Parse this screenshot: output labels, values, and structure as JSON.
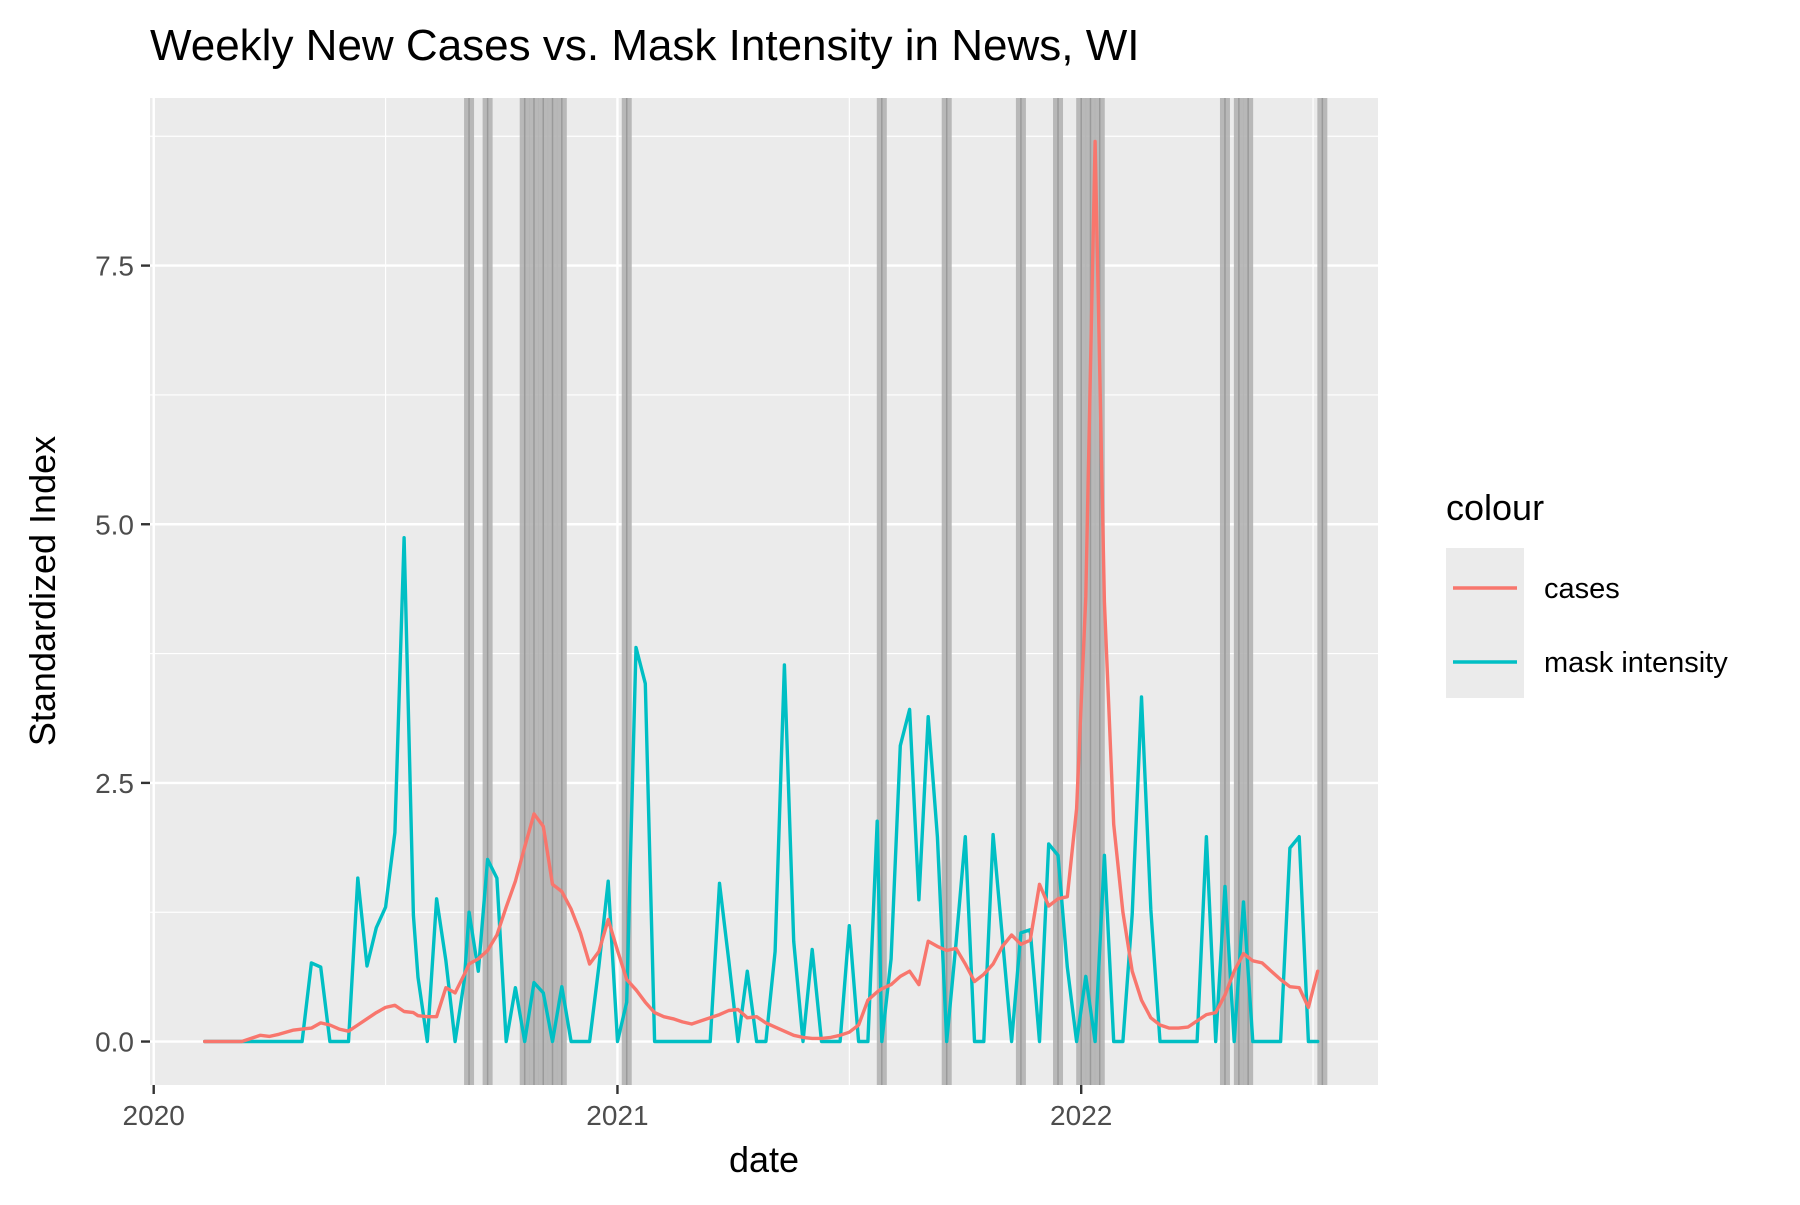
{
  "chart_data": {
    "type": "line",
    "title": "Weekly New Cases vs. Mask Intensity in News, WI",
    "xlabel": "date",
    "ylabel": "Standardized Index",
    "x_ticks": [
      {
        "label": "2020",
        "value": 2020.0
      },
      {
        "label": "2021",
        "value": 2021.0
      },
      {
        "label": "2022",
        "value": 2022.0
      }
    ],
    "y_ticks": [
      {
        "label": "0.0",
        "value": 0.0
      },
      {
        "label": "2.5",
        "value": 2.5
      },
      {
        "label": "5.0",
        "value": 5.0
      },
      {
        "label": "7.5",
        "value": 7.5
      }
    ],
    "xlim": [
      2019.992,
      2022.64
    ],
    "ylim": [
      -0.42,
      9.12
    ],
    "grid": true,
    "legend": {
      "title": "colour",
      "position": "right"
    },
    "colors": {
      "cases": "#F8766D",
      "mask intensity": "#00BFC4",
      "band": "#b3b3b3",
      "panel": "#ebebeb"
    },
    "highlight_dates": [
      2020.68,
      2020.72,
      2020.8,
      2020.82,
      2020.84,
      2020.86,
      2020.88,
      2021.02,
      2021.57,
      2021.71,
      2021.87,
      2021.95,
      2022.0,
      2022.02,
      2022.04,
      2022.31,
      2022.34,
      2022.36,
      2022.52
    ],
    "series": [
      {
        "name": "cases",
        "x": [
          2020.11,
          2020.13,
          2020.15,
          2020.17,
          2020.19,
          2020.21,
          2020.23,
          2020.25,
          2020.27,
          2020.3,
          2020.32,
          2020.34,
          2020.36,
          2020.38,
          2020.4,
          2020.42,
          2020.44,
          2020.46,
          2020.48,
          2020.5,
          2020.52,
          2020.54,
          2020.56,
          2020.57,
          2020.59,
          2020.61,
          2020.63,
          2020.65,
          2020.67,
          2020.68,
          2020.7,
          2020.72,
          2020.74,
          2020.76,
          2020.78,
          2020.8,
          2020.82,
          2020.84,
          2020.86,
          2020.88,
          2020.9,
          2020.92,
          2020.94,
          2020.96,
          2020.98,
          2021.0,
          2021.02,
          2021.04,
          2021.06,
          2021.08,
          2021.1,
          2021.12,
          2021.14,
          2021.16,
          2021.18,
          2021.2,
          2021.22,
          2021.24,
          2021.26,
          2021.28,
          2021.3,
          2021.32,
          2021.34,
          2021.36,
          2021.38,
          2021.4,
          2021.42,
          2021.44,
          2021.46,
          2021.48,
          2021.5,
          2021.52,
          2021.54,
          2021.56,
          2021.57,
          2021.59,
          2021.61,
          2021.63,
          2021.65,
          2021.67,
          2021.69,
          2021.71,
          2021.73,
          2021.75,
          2021.77,
          2021.79,
          2021.81,
          2021.83,
          2021.85,
          2021.87,
          2021.89,
          2021.91,
          2021.93,
          2021.95,
          2021.97,
          2021.99,
          2022.01,
          2022.03,
          2022.05,
          2022.07,
          2022.09,
          2022.11,
          2022.13,
          2022.15,
          2022.17,
          2022.19,
          2022.21,
          2022.23,
          2022.25,
          2022.27,
          2022.29,
          2022.31,
          2022.33,
          2022.35,
          2022.37,
          2022.39,
          2022.41,
          2022.43,
          2022.45,
          2022.47,
          2022.49,
          2022.51
        ],
        "values": [
          0.0,
          0.0,
          0.0,
          0.0,
          0.0,
          0.03,
          0.06,
          0.05,
          0.07,
          0.11,
          0.12,
          0.13,
          0.18,
          0.16,
          0.12,
          0.1,
          0.16,
          0.22,
          0.28,
          0.33,
          0.35,
          0.29,
          0.28,
          0.25,
          0.24,
          0.24,
          0.52,
          0.47,
          0.65,
          0.75,
          0.8,
          0.88,
          1.03,
          1.3,
          1.55,
          1.88,
          2.2,
          2.08,
          1.52,
          1.45,
          1.28,
          1.05,
          0.75,
          0.87,
          1.18,
          0.88,
          0.6,
          0.5,
          0.38,
          0.28,
          0.24,
          0.22,
          0.19,
          0.17,
          0.2,
          0.23,
          0.26,
          0.3,
          0.31,
          0.23,
          0.24,
          0.18,
          0.14,
          0.1,
          0.06,
          0.04,
          0.03,
          0.03,
          0.04,
          0.06,
          0.09,
          0.16,
          0.4,
          0.48,
          0.51,
          0.55,
          0.63,
          0.68,
          0.55,
          0.97,
          0.92,
          0.88,
          0.9,
          0.75,
          0.58,
          0.65,
          0.75,
          0.92,
          1.03,
          0.94,
          0.98,
          1.52,
          1.31,
          1.38,
          1.4,
          2.25,
          4.3,
          8.7,
          4.25,
          2.1,
          1.25,
          0.68,
          0.4,
          0.23,
          0.16,
          0.13,
          0.13,
          0.14,
          0.2,
          0.26,
          0.28,
          0.45,
          0.68,
          0.85,
          0.78,
          0.76,
          0.68,
          0.6,
          0.53,
          0.52,
          0.33,
          0.68
        ]
      },
      {
        "name": "mask intensity",
        "x": [
          2020.11,
          2020.13,
          2020.15,
          2020.17,
          2020.19,
          2020.21,
          2020.23,
          2020.25,
          2020.27,
          2020.3,
          2020.32,
          2020.34,
          2020.36,
          2020.38,
          2020.4,
          2020.42,
          2020.44,
          2020.46,
          2020.48,
          2020.5,
          2020.52,
          2020.54,
          2020.56,
          2020.57,
          2020.59,
          2020.61,
          2020.63,
          2020.65,
          2020.67,
          2020.68,
          2020.7,
          2020.72,
          2020.74,
          2020.76,
          2020.78,
          2020.8,
          2020.82,
          2020.84,
          2020.86,
          2020.88,
          2020.9,
          2020.92,
          2020.94,
          2020.96,
          2020.98,
          2021.0,
          2021.02,
          2021.04,
          2021.06,
          2021.08,
          2021.1,
          2021.12,
          2021.14,
          2021.16,
          2021.18,
          2021.2,
          2021.22,
          2021.24,
          2021.26,
          2021.28,
          2021.3,
          2021.32,
          2021.34,
          2021.36,
          2021.38,
          2021.4,
          2021.42,
          2021.44,
          2021.46,
          2021.48,
          2021.5,
          2021.52,
          2021.54,
          2021.56,
          2021.57,
          2021.59,
          2021.61,
          2021.63,
          2021.65,
          2021.67,
          2021.69,
          2021.71,
          2021.73,
          2021.75,
          2021.77,
          2021.79,
          2021.81,
          2021.83,
          2021.85,
          2021.87,
          2021.89,
          2021.91,
          2021.93,
          2021.95,
          2021.97,
          2021.99,
          2022.01,
          2022.03,
          2022.05,
          2022.07,
          2022.09,
          2022.11,
          2022.13,
          2022.15,
          2022.17,
          2022.19,
          2022.21,
          2022.23,
          2022.25,
          2022.27,
          2022.29,
          2022.31,
          2022.33,
          2022.35,
          2022.37,
          2022.39,
          2022.41,
          2022.43,
          2022.45,
          2022.47,
          2022.49,
          2022.51
        ],
        "values": [
          0.0,
          0.0,
          0.0,
          0.0,
          0.0,
          0.0,
          0.0,
          0.0,
          0.0,
          0.0,
          0.0,
          0.76,
          0.72,
          0.0,
          0.0,
          0.0,
          1.58,
          0.73,
          1.1,
          1.3,
          2.02,
          4.87,
          1.22,
          0.62,
          0.0,
          1.38,
          0.78,
          0.0,
          0.6,
          1.25,
          0.68,
          1.76,
          1.58,
          0.0,
          0.52,
          0.0,
          0.57,
          0.47,
          0.0,
          0.53,
          0.0,
          0.0,
          0.0,
          0.73,
          1.55,
          0.0,
          0.38,
          3.81,
          3.46,
          0.0,
          0.0,
          0.0,
          0.0,
          0.0,
          0.0,
          0.0,
          1.53,
          0.78,
          0.0,
          0.68,
          0.0,
          0.0,
          0.87,
          3.64,
          0.97,
          0.0,
          0.89,
          0.0,
          0.0,
          0.0,
          1.12,
          0.0,
          0.0,
          2.13,
          0.0,
          0.8,
          2.86,
          3.21,
          1.37,
          3.14,
          1.98,
          0.0,
          0.95,
          1.98,
          0.0,
          0.0,
          2.0,
          1.0,
          0.0,
          1.05,
          1.08,
          0.0,
          1.91,
          1.8,
          0.72,
          0.0,
          0.63,
          0.0,
          1.8,
          0.0,
          0.0,
          1.23,
          3.33,
          1.28,
          0.0,
          0.0,
          0.0,
          0.0,
          0.0,
          1.98,
          0.0,
          1.5,
          0.0,
          1.35,
          0.0,
          0.0,
          0.0,
          0.0,
          1.87,
          1.98,
          0.0,
          0.0
        ]
      }
    ]
  }
}
